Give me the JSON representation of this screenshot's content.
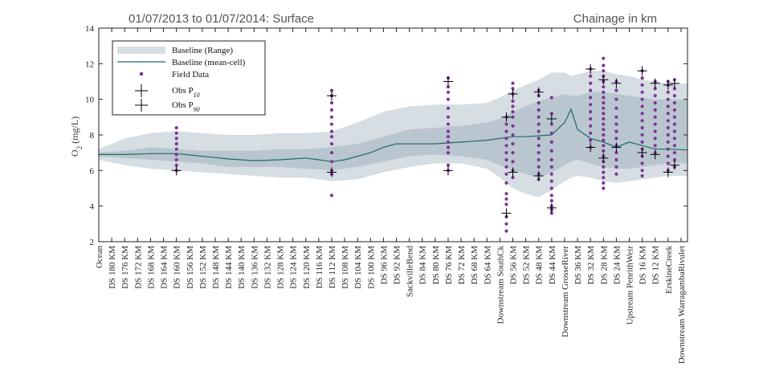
{
  "chart_data": {
    "type": "line",
    "title_left": "01/07/2013 to 01/07/2014: Surface",
    "title_right": "Chainage in km",
    "ylabel": "O",
    "ylabel_sub": "2",
    "ylabel_unit": "(mg/L)",
    "ylim": [
      2,
      14
    ],
    "yticks": [
      "2",
      "4",
      "6",
      "8",
      "10",
      "12",
      "14"
    ],
    "categories": [
      "Ocean",
      "DS 180 KM",
      "DS 176 KM",
      "DS 172 KM",
      "DS 168 KM",
      "DS 164 KM",
      "DS 160 KM",
      "DS 156 KM",
      "DS 152 KM",
      "DS 148 KM",
      "DS 144 KM",
      "DS 140 KM",
      "DS 136 KM",
      "DS 132 KM",
      "DS 128 KM",
      "DS 124 KM",
      "DS 120 KM",
      "DS 116 KM",
      "DS 112 KM",
      "DS 108 KM",
      "DS 104 KM",
      "DS 100 KM",
      "DS 96 KM",
      "DS 92 KM",
      "SackvilleBend",
      "DS 84 KM",
      "DS 80 KM",
      "DS 76 KM",
      "DS 72 KM",
      "DS 68 KM",
      "DS 64 KM",
      "Downstream SouthCk",
      "DS 56 KM",
      "DS 52 KM",
      "DS 48 KM",
      "DS 44 KM",
      "Downstream GrosseRiver",
      "DS 36 KM",
      "DS 32 KM",
      "DS 28 KM",
      "DS 24 KM",
      "Upstream PenrithWeir",
      "DS 16 KM",
      "DS 12 KM",
      "ErskineCreek",
      "Downstream WarragambaRivulet"
    ],
    "category_pos": [
      0,
      2,
      4,
      6,
      8,
      10,
      12,
      14,
      16,
      18,
      20,
      22,
      24,
      26,
      28,
      30,
      32,
      34,
      36,
      38,
      40,
      42,
      44,
      46,
      48,
      50,
      52,
      54,
      56,
      58,
      60,
      62,
      64,
      66,
      68,
      70,
      72,
      74,
      76,
      78,
      80,
      82,
      84,
      86,
      88,
      90
    ],
    "xlim": [
      0,
      91
    ],
    "legend": {
      "position": "top-left",
      "entries": [
        "Baseline (Range)",
        "Baseline (mean-cell)",
        "Field Data",
        "Obs P",
        "Obs P"
      ],
      "subscripts": [
        "10",
        "90"
      ]
    },
    "colors": {
      "range_outer": "#d6dde3",
      "range_inner": "#b9c6cf",
      "mean_line": "#1c6b6b",
      "field_data": "#7e3596",
      "obs": "#000000"
    },
    "series": [
      {
        "name": "Baseline (Range)",
        "kind": "band",
        "x": [
          0,
          4,
          8,
          12,
          16,
          20,
          24,
          28,
          32,
          36,
          40,
          44,
          48,
          52,
          56,
          60,
          62,
          64,
          66,
          68,
          70,
          72,
          73,
          74,
          76,
          78,
          80,
          82,
          84,
          86,
          88,
          91
        ],
        "outer_low": [
          6.6,
          6.3,
          6.1,
          6.0,
          5.9,
          5.8,
          5.7,
          5.6,
          5.6,
          5.4,
          5.5,
          5.9,
          6.2,
          6.4,
          6.4,
          6.1,
          5.6,
          5.0,
          4.7,
          4.5,
          4.9,
          5.4,
          5.6,
          5.7,
          5.6,
          5.4,
          5.3,
          5.4,
          5.5,
          5.6,
          5.7,
          5.7
        ],
        "outer_high": [
          7.2,
          7.8,
          8.1,
          8.2,
          8.1,
          8.0,
          8.0,
          8.1,
          8.1,
          8.2,
          8.7,
          9.3,
          9.6,
          9.7,
          9.7,
          9.8,
          10.1,
          10.5,
          10.8,
          11.1,
          11.5,
          11.5,
          11.3,
          11.4,
          11.6,
          11.6,
          11.4,
          11.3,
          11.1,
          11.0,
          10.9,
          10.9
        ],
        "inner_low": [
          6.8,
          6.7,
          6.6,
          6.5,
          6.4,
          6.2,
          6.2,
          6.2,
          6.1,
          6.0,
          6.2,
          6.5,
          6.8,
          6.9,
          6.8,
          6.6,
          6.3,
          6.0,
          5.8,
          5.6,
          5.9,
          6.3,
          6.5,
          6.6,
          6.4,
          6.2,
          6.1,
          6.1,
          6.2,
          6.3,
          6.4,
          6.4
        ],
        "inner_high": [
          7.0,
          7.1,
          7.3,
          7.2,
          7.1,
          7.1,
          7.1,
          7.2,
          7.2,
          7.3,
          7.5,
          7.9,
          8.3,
          8.4,
          8.5,
          8.7,
          8.9,
          9.3,
          9.6,
          9.9,
          10.1,
          10.3,
          10.2,
          10.2,
          10.4,
          10.4,
          10.3,
          10.2,
          10.1,
          10.0,
          10.0,
          10.0
        ]
      },
      {
        "name": "Baseline (mean-cell)",
        "kind": "line",
        "x": [
          0,
          4,
          8,
          12,
          16,
          20,
          24,
          28,
          32,
          34,
          36,
          38,
          40,
          42,
          44,
          46,
          48,
          50,
          52,
          54,
          56,
          58,
          60,
          62,
          64,
          66,
          68,
          70,
          72,
          73,
          74,
          76,
          78,
          80,
          82,
          84,
          86,
          88,
          91
        ],
        "y": [
          6.9,
          6.9,
          6.95,
          6.95,
          6.8,
          6.65,
          6.55,
          6.6,
          6.7,
          6.6,
          6.5,
          6.6,
          6.8,
          7.0,
          7.3,
          7.5,
          7.5,
          7.5,
          7.5,
          7.55,
          7.6,
          7.65,
          7.7,
          7.8,
          7.9,
          7.9,
          7.95,
          8.0,
          8.7,
          9.45,
          8.3,
          7.8,
          7.6,
          7.3,
          7.6,
          7.4,
          7.2,
          7.2,
          7.15
        ]
      },
      {
        "name": "Field Data",
        "kind": "scatter",
        "points": [
          {
            "x": 12,
            "y": [
              6.0,
              6.3,
              6.6,
              6.9,
              7.2,
              7.5,
              7.8,
              8.1,
              8.4
            ]
          },
          {
            "x": 36,
            "y": [
              4.6,
              5.8,
              6.0,
              6.5,
              7.0,
              7.5,
              7.9,
              8.2,
              8.6,
              9.0,
              9.4,
              9.8,
              10.2,
              10.5
            ]
          },
          {
            "x": 54,
            "y": [
              6.0,
              6.3,
              7.0,
              7.3,
              7.6,
              7.9,
              8.2,
              8.6,
              9.0,
              9.5,
              10.0,
              10.4,
              10.7,
              11.2
            ]
          },
          {
            "x": 63,
            "y": [
              2.6,
              3.0,
              3.4,
              4.1,
              4.4,
              4.7,
              5.3,
              5.8,
              6.2,
              6.6,
              7.0,
              7.4,
              7.8,
              8.2,
              8.6,
              9.0
            ]
          },
          {
            "x": 64,
            "y": [
              5.6,
              6.0,
              6.5,
              7.0,
              7.5,
              8.0,
              8.5,
              9.0,
              9.3,
              9.6,
              9.9,
              10.3,
              10.6,
              10.9
            ]
          },
          {
            "x": 68,
            "y": [
              5.5,
              5.8,
              6.2,
              6.6,
              7.0,
              7.4,
              7.8,
              8.2,
              8.6,
              9.0,
              9.4,
              9.8,
              10.2,
              10.5
            ]
          },
          {
            "x": 70,
            "y": [
              3.6,
              3.8,
              4.0,
              4.3,
              4.6,
              5.0,
              5.4,
              5.8,
              6.2,
              6.6,
              7.1,
              7.6,
              8.1,
              8.6,
              9.2,
              10.1
            ]
          },
          {
            "x": 76,
            "y": [
              7.3,
              7.7,
              8.1,
              8.5,
              8.9,
              9.3,
              9.7,
              10.1,
              10.5,
              10.9,
              11.3,
              11.7
            ]
          },
          {
            "x": 78,
            "y": [
              5.0,
              5.3,
              5.6,
              5.9,
              6.2,
              6.5,
              6.8,
              7.1,
              7.4,
              7.7,
              8.0,
              8.3,
              8.6,
              8.9,
              9.2,
              9.5,
              9.8,
              10.1,
              10.4,
              10.7,
              11.0,
              11.3,
              11.6,
              11.9,
              12.3
            ]
          },
          {
            "x": 80,
            "y": [
              5.8,
              6.2,
              6.6,
              7.0,
              7.4,
              7.8,
              8.2,
              8.6,
              9.0,
              9.5,
              10.0,
              10.5,
              11.0
            ]
          },
          {
            "x": 84,
            "y": [
              5.7,
              6.0,
              6.4,
              6.8,
              7.2,
              7.6,
              8.0,
              8.4,
              8.8,
              9.2,
              9.6,
              10.0,
              10.4,
              10.8,
              11.2,
              11.6
            ]
          },
          {
            "x": 86,
            "y": [
              7.0,
              7.4,
              7.8,
              8.2,
              8.6,
              9.0,
              9.4,
              9.8,
              10.2,
              10.6,
              11.0
            ]
          },
          {
            "x": 88,
            "y": [
              6.0,
              6.4,
              6.8,
              7.2,
              7.6,
              8.0,
              8.4,
              8.8,
              9.2,
              9.6,
              10.0,
              10.4,
              10.8,
              11.0
            ]
          },
          {
            "x": 89,
            "y": [
              6.2,
              6.6,
              7.0,
              7.4,
              7.8,
              8.2,
              8.6,
              9.0,
              9.4,
              9.8,
              10.2,
              10.6,
              11.1
            ]
          }
        ]
      },
      {
        "name": "Obs P10",
        "kind": "marker",
        "x": [
          12,
          36,
          54,
          63,
          64,
          68,
          70,
          76,
          78,
          80,
          84,
          86,
          88,
          89
        ],
        "y": [
          6.0,
          5.9,
          6.0,
          3.6,
          5.9,
          5.7,
          3.9,
          7.3,
          6.7,
          7.3,
          7.0,
          6.9,
          5.9,
          6.3
        ]
      },
      {
        "name": "Obs P90",
        "kind": "marker",
        "x": [
          36,
          54,
          63,
          64,
          68,
          70,
          76,
          78,
          80,
          84,
          86,
          88,
          89
        ],
        "y": [
          10.2,
          11.0,
          9.0,
          10.3,
          10.4,
          8.9,
          11.7,
          11.1,
          10.9,
          11.6,
          10.9,
          10.8,
          10.9
        ]
      }
    ]
  }
}
